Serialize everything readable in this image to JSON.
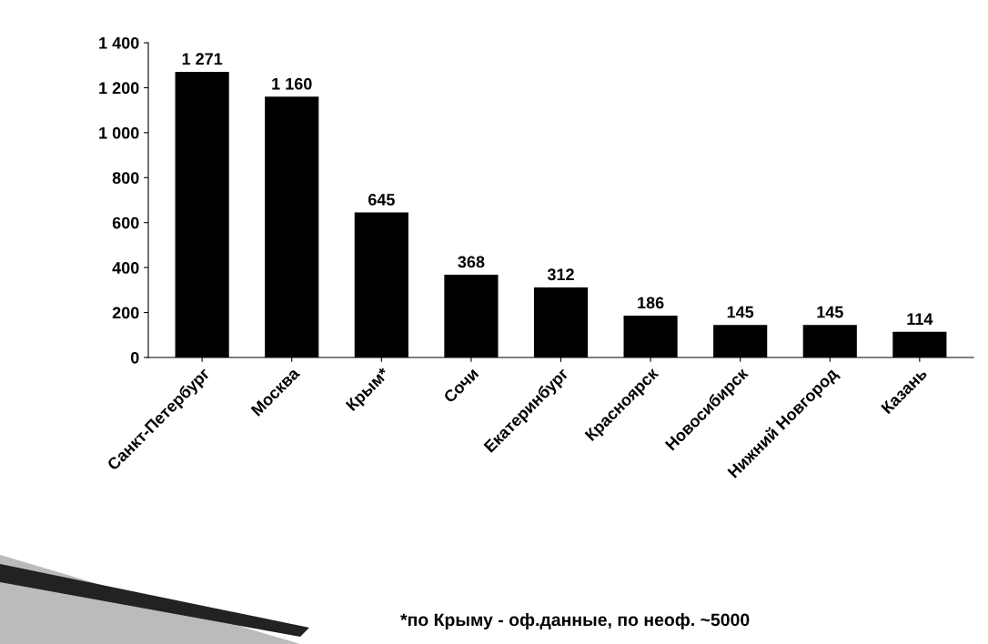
{
  "chart_data": {
    "type": "bar",
    "categories": [
      "Санкт-Петербург",
      "Москва",
      "Крым*",
      "Сочи",
      "Екатеринбург",
      "Красноярск",
      "Новосибирск",
      "Нижний Новгород",
      "Казань"
    ],
    "values": [
      1271,
      1160,
      645,
      368,
      312,
      186,
      145,
      145,
      114
    ],
    "value_labels": [
      "1 271",
      "1 160",
      "645",
      "368",
      "312",
      "186",
      "145",
      "145",
      "114"
    ],
    "color": "#000000",
    "ylim": [
      0,
      1400
    ],
    "yticks": [
      0,
      200,
      400,
      600,
      800,
      {
        "value": 1000,
        "label": "1 000"
      },
      {
        "value": 1200,
        "label": "1 200"
      },
      {
        "value": 1400,
        "label": "1 400"
      }
    ],
    "grid": false,
    "annotations": [
      "*по Крыму - оф.данные, по неоф. ~5000"
    ]
  }
}
